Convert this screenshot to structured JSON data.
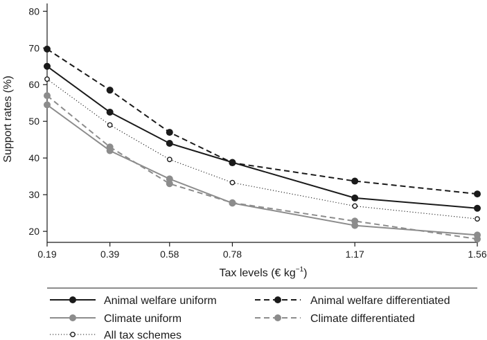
{
  "chart_data": {
    "type": "line",
    "title": "",
    "xlabel": "Tax levels (€ kg",
    "xlabel_sup": "−1",
    "xlabel_close": ")",
    "ylabel": "Support rates (%)",
    "x": [
      0.19,
      0.39,
      0.58,
      0.78,
      1.17,
      1.56
    ],
    "x_tick_labels": [
      "0.19",
      "0.39",
      "0.58",
      "0.78",
      "1.17",
      "1.56"
    ],
    "y_ticks": [
      20,
      30,
      40,
      50,
      60,
      70,
      80
    ],
    "ylim": [
      17,
      81
    ],
    "xlim": [
      0.19,
      1.56
    ],
    "grid": false,
    "legend_position": "bottom",
    "series": [
      {
        "name": "Animal welfare uniform",
        "values": [
          65,
          52.5,
          44,
          38.8,
          29.1,
          26.3
        ],
        "color": "#1a1a1a",
        "dash": "solid",
        "marker": "filled"
      },
      {
        "name": "Animal welfare differentiated",
        "values": [
          69.7,
          58.5,
          47,
          38.7,
          33.7,
          30.2
        ],
        "color": "#1a1a1a",
        "dash": "dashed",
        "marker": "filled"
      },
      {
        "name": "Climate uniform",
        "values": [
          54.5,
          42,
          34.3,
          27.7,
          21.6,
          19
        ],
        "color": "#8c8c8c",
        "dash": "solid",
        "marker": "filled"
      },
      {
        "name": "Climate differentiated",
        "values": [
          57,
          43,
          33,
          27.8,
          22.8,
          17.9
        ],
        "color": "#8c8c8c",
        "dash": "dashed",
        "marker": "filled"
      },
      {
        "name": "All tax schemes",
        "values": [
          61.5,
          49,
          39.6,
          33.3,
          26.9,
          23.4
        ],
        "color": "#1a1a1a",
        "dash": "dotted",
        "marker": "open"
      }
    ]
  }
}
